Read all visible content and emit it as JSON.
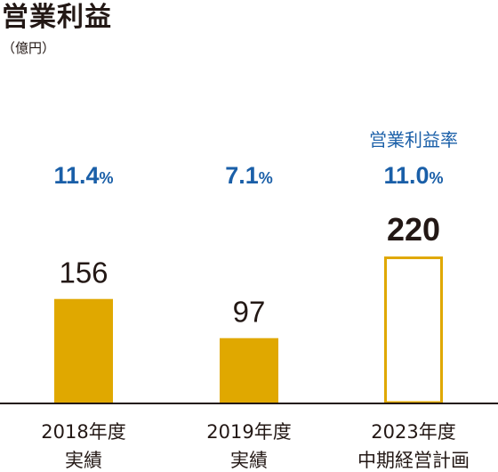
{
  "title": "営業利益",
  "unit_label": "（億円）",
  "colors": {
    "bar_fill": "#e0a800",
    "bar_plan_outline": "#e0a800",
    "margin_text": "#1a5fa8",
    "text": "#231815",
    "axis": "#231815"
  },
  "chart_data": {
    "type": "bar",
    "title": "営業利益",
    "ylabel": "（億円）",
    "categories": [
      "2018年度 実績",
      "2019年度 実績",
      "2023年度 中期経営計画"
    ],
    "category_lines": [
      [
        "2018年度",
        "実績"
      ],
      [
        "2019年度",
        "実績"
      ],
      [
        "2023年度",
        "中期経営計画"
      ]
    ],
    "values": [
      156,
      97,
      220
    ],
    "value_labels": [
      "156",
      "97",
      "220"
    ],
    "bar_styles": [
      "filled",
      "filled",
      "outline"
    ],
    "margin_heading": "営業利益率",
    "margins": [
      {
        "number": "11.4",
        "suffix": "%"
      },
      {
        "number": "7.1",
        "suffix": "%"
      },
      {
        "number": "11.0",
        "suffix": "%"
      }
    ],
    "ylim": [
      0,
      220
    ],
    "grid": false,
    "legend": "none"
  }
}
